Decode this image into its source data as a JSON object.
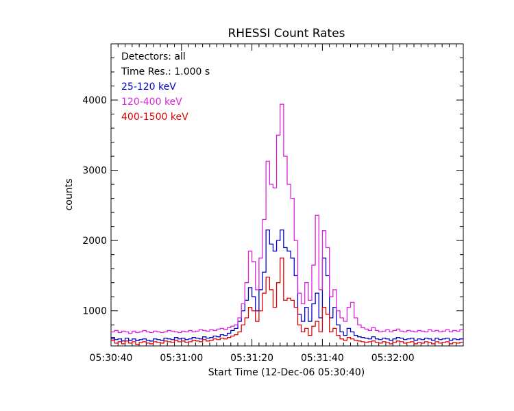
{
  "chart_data": {
    "type": "line",
    "title": "RHESSI Count Rates",
    "xlabel": "Start Time (12-Dec-06 05:30:40)",
    "ylabel": "counts",
    "xlim": [
      0,
      100
    ],
    "ylim": [
      500,
      4800
    ],
    "x_ticks": [
      {
        "value": 0,
        "label": "05:30:40"
      },
      {
        "value": 20,
        "label": "05:31:00"
      },
      {
        "value": 40,
        "label": "05:31:20"
      },
      {
        "value": 60,
        "label": "05:31:40"
      },
      {
        "value": 80,
        "label": "05:32:00"
      }
    ],
    "y_ticks": [
      {
        "value": 1000,
        "label": "1000"
      },
      {
        "value": 2000,
        "label": "2000"
      },
      {
        "value": 3000,
        "label": "3000"
      },
      {
        "value": 4000,
        "label": "4000"
      }
    ],
    "legend": {
      "position": "top-left",
      "lines": [
        "Detectors: all",
        "Time Res.: 1.000 s"
      ]
    },
    "x": [
      0,
      1,
      2,
      3,
      4,
      5,
      6,
      7,
      8,
      9,
      10,
      11,
      12,
      13,
      14,
      15,
      16,
      17,
      18,
      19,
      20,
      21,
      22,
      23,
      24,
      25,
      26,
      27,
      28,
      29,
      30,
      31,
      32,
      33,
      34,
      35,
      36,
      37,
      38,
      39,
      40,
      41,
      42,
      43,
      44,
      45,
      46,
      47,
      48,
      49,
      50,
      51,
      52,
      53,
      54,
      55,
      56,
      57,
      58,
      59,
      60,
      61,
      62,
      63,
      64,
      65,
      66,
      67,
      68,
      69,
      70,
      71,
      72,
      73,
      74,
      75,
      76,
      77,
      78,
      79,
      80,
      81,
      82,
      83,
      84,
      85,
      86,
      87,
      88,
      89,
      90,
      91,
      92,
      93,
      94,
      95,
      96,
      97,
      98,
      99
    ],
    "series": [
      {
        "name": "25-120 keV",
        "color": "#0000cc",
        "values": [
          620,
          590,
          600,
          570,
          610,
          580,
          600,
          575,
          590,
          600,
          580,
          570,
          600,
          590,
          580,
          610,
          600,
          590,
          620,
          600,
          610,
          590,
          600,
          620,
          610,
          600,
          630,
          610,
          620,
          640,
          630,
          660,
          650,
          680,
          720,
          750,
          850,
          1000,
          1150,
          1330,
          1200,
          1000,
          1300,
          1550,
          2150,
          1950,
          1850,
          2000,
          2150,
          1900,
          1850,
          1750,
          1500,
          950,
          850,
          1050,
          850,
          1100,
          1250,
          900,
          1750,
          1500,
          900,
          1050,
          800,
          700,
          650,
          750,
          700,
          650,
          630,
          620,
          610,
          600,
          630,
          600,
          590,
          610,
          600,
          580,
          600,
          620,
          610,
          590,
          600,
          610,
          580,
          600,
          590,
          610,
          600,
          580,
          610,
          590,
          600,
          610,
          580,
          600,
          590,
          600
        ]
      },
      {
        "name": "120-400 keV",
        "color": "#dd22dd",
        "values": [
          700,
          720,
          690,
          710,
          700,
          680,
          710,
          690,
          700,
          720,
          700,
          690,
          710,
          700,
          690,
          700,
          720,
          710,
          700,
          690,
          710,
          700,
          720,
          700,
          710,
          730,
          720,
          710,
          730,
          720,
          740,
          750,
          730,
          760,
          780,
          800,
          900,
          1100,
          1400,
          1850,
          1700,
          1300,
          1750,
          2300,
          3130,
          2800,
          2750,
          3500,
          3940,
          3200,
          2800,
          2600,
          2000,
          1250,
          1100,
          1400,
          1150,
          1650,
          2360,
          1300,
          2140,
          1900,
          1200,
          1300,
          1000,
          900,
          850,
          1050,
          1120,
          900,
          800,
          760,
          740,
          720,
          760,
          720,
          700,
          710,
          730,
          700,
          720,
          740,
          710,
          700,
          720,
          710,
          700,
          720,
          710,
          700,
          730,
          710,
          720,
          700,
          710,
          730,
          700,
          720,
          710,
          730
        ]
      },
      {
        "name": "400-1500 keV",
        "color": "#dd0000",
        "values": [
          580,
          540,
          560,
          530,
          570,
          540,
          560,
          520,
          550,
          560,
          540,
          530,
          560,
          550,
          540,
          570,
          560,
          550,
          580,
          560,
          570,
          550,
          560,
          580,
          570,
          560,
          590,
          570,
          580,
          600,
          590,
          610,
          600,
          620,
          640,
          660,
          700,
          800,
          900,
          1050,
          1000,
          850,
          1000,
          1250,
          1480,
          1300,
          1050,
          1400,
          1750,
          1150,
          1180,
          1150,
          1050,
          800,
          700,
          750,
          650,
          780,
          850,
          700,
          1050,
          950,
          700,
          750,
          650,
          600,
          580,
          620,
          600,
          580,
          570,
          560,
          550,
          560,
          570,
          550,
          540,
          560,
          550,
          530,
          550,
          570,
          560,
          540,
          550,
          560,
          530,
          550,
          540,
          560,
          550,
          530,
          560,
          540,
          550,
          560,
          530,
          550,
          540,
          550
        ]
      }
    ]
  }
}
